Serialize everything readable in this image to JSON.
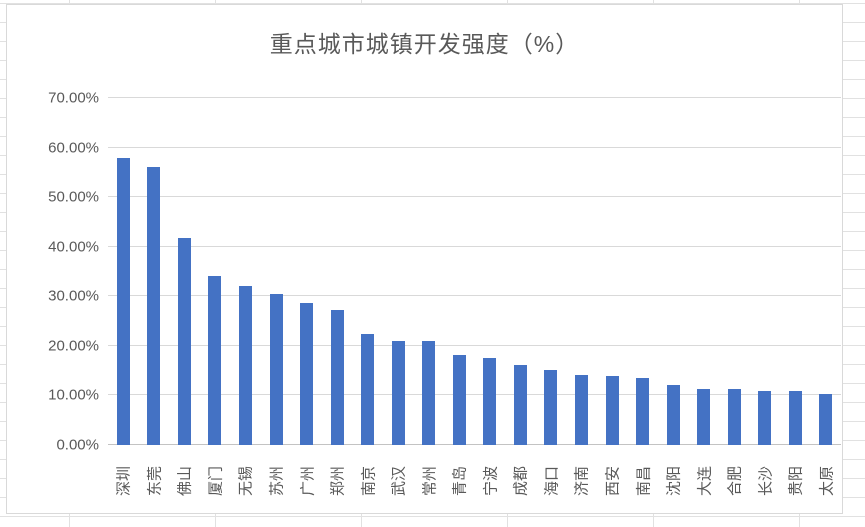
{
  "chart_data": {
    "type": "bar",
    "title": "重点城市城镇开发强度（%）",
    "categories": [
      "深圳",
      "东莞",
      "佛山",
      "厦门",
      "无锡",
      "苏州",
      "广州",
      "郑州",
      "南京",
      "武汉",
      "常州",
      "青岛",
      "宁波",
      "成都",
      "海口",
      "济南",
      "西安",
      "南昌",
      "沈阳",
      "大连",
      "合肥",
      "长沙",
      "贵阳",
      "太原"
    ],
    "values": [
      57.9,
      56.1,
      41.7,
      34.0,
      32.0,
      30.4,
      28.7,
      27.2,
      22.4,
      20.9,
      20.9,
      18.2,
      17.6,
      16.1,
      15.2,
      14.1,
      14.0,
      13.5,
      12.1,
      11.3,
      11.2,
      10.8,
      10.8,
      10.3
    ],
    "xlabel": "",
    "ylabel": "",
    "ylim": [
      0,
      70
    ],
    "y_ticks": [
      0,
      10,
      20,
      30,
      40,
      50,
      60,
      70
    ],
    "y_tick_labels": [
      "0.00%",
      "10.00%",
      "20.00%",
      "30.00%",
      "40.00%",
      "50.00%",
      "60.00%",
      "70.00%"
    ],
    "grid": "horizontal",
    "legend": "none",
    "bar_color": "#4472C4",
    "gridline_color": "#D9D9D9",
    "text_color": "#595959"
  }
}
